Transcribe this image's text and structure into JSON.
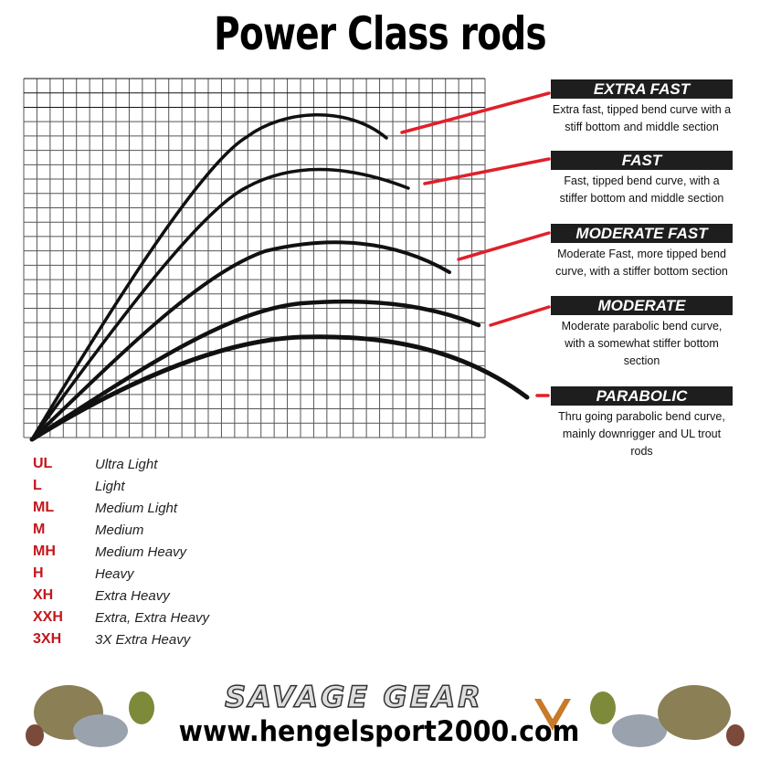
{
  "title": "Power Class rods",
  "actions": [
    {
      "name": "EXTRA FAST",
      "description": "Extra fast, tipped bend curve with a stiff bottom and middle section"
    },
    {
      "name": "FAST",
      "description": "Fast, tipped bend curve, with a stiffer bottom and middle section"
    },
    {
      "name": "MODERATE FAST",
      "description": "Moderate Fast, more tipped bend curve, with a stiffer bottom section"
    },
    {
      "name": "MODERATE",
      "description": "Moderate parabolic bend curve, with a somewhat stiffer bottom section"
    },
    {
      "name": "PARABOLIC",
      "description": "Thru going parabolic bend curve, mainly downrigger and UL trout rods"
    }
  ],
  "power_classes": [
    {
      "code": "UL",
      "name": "Ultra Light"
    },
    {
      "code": "L",
      "name": "Light"
    },
    {
      "code": "ML",
      "name": "Medium Light"
    },
    {
      "code": "M",
      "name": "Medium"
    },
    {
      "code": "MH",
      "name": "Medium Heavy"
    },
    {
      "code": "H",
      "name": "Heavy"
    },
    {
      "code": "XH",
      "name": "Extra Heavy"
    },
    {
      "code": "XXH",
      "name": "Extra, Extra Heavy"
    },
    {
      "code": "3XH",
      "name": "3X Extra Heavy"
    }
  ],
  "footer": {
    "brand": "SAVAGE GEAR",
    "url": "www.hengelsport2000.com"
  },
  "colors": {
    "accent": "#c4161c",
    "label_bg": "#1e1e1e",
    "pointer": "#e0202a"
  }
}
